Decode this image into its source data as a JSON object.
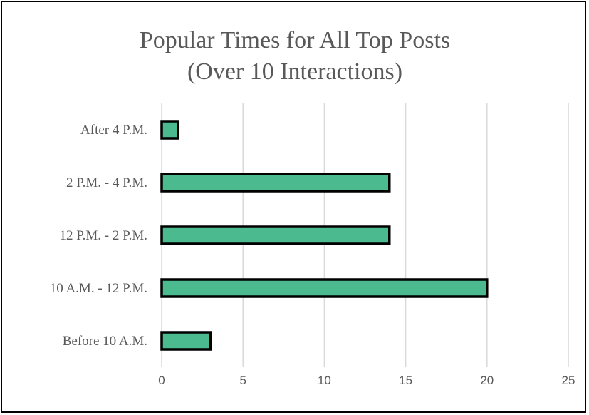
{
  "chart_data": {
    "type": "bar",
    "orientation": "horizontal",
    "title": [
      "Popular Times for All Top Posts",
      "(Over 10 Interactions)"
    ],
    "categories": [
      "After 4 P.M.",
      "2 P.M. - 4 P.M.",
      "12 P.M. - 2 P.M.",
      "10 A.M. - 12 P.M.",
      "Before 10 A.M."
    ],
    "values": [
      1,
      14,
      14,
      20,
      3
    ],
    "xlim": [
      0,
      25
    ],
    "xticks": [
      0,
      5,
      10,
      15,
      20,
      25
    ],
    "grid": "vertical",
    "legend": "none",
    "colors": {
      "bar_fill": "#4bba8f",
      "bar_outline": "#000000",
      "grid": "#d9d9d9",
      "text": "#595959"
    }
  }
}
